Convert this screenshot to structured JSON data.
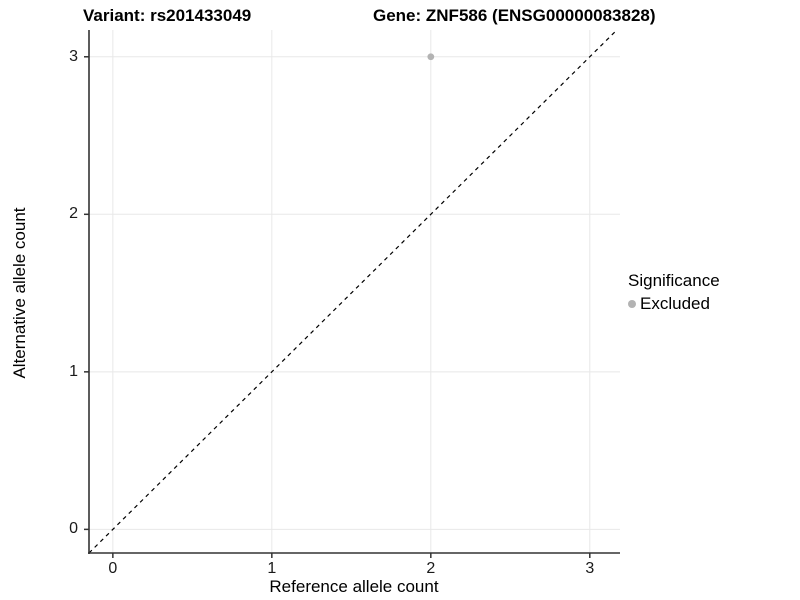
{
  "chart_data": {
    "type": "scatter",
    "title_left": "Variant: rs201433049",
    "title_right": "Gene: ZNF586 (ENSG00000083828)",
    "xlabel": "Reference allele count",
    "ylabel": "Alternative allele count",
    "xlim": [
      -0.15,
      3.19
    ],
    "ylim": [
      -0.15,
      3.17
    ],
    "xticks": [
      "0",
      "1",
      "2",
      "3"
    ],
    "yticks": [
      "0",
      "1",
      "2",
      "3"
    ],
    "xtick_values": [
      0,
      1,
      2,
      3
    ],
    "ytick_values": [
      0,
      1,
      2,
      3
    ],
    "grid": true,
    "reference_line": {
      "type": "identity y=x",
      "style": "dashed",
      "color": "#000000"
    },
    "series": [
      {
        "name": "Excluded",
        "color": "#b3b3b3",
        "points": [
          {
            "x": 2,
            "y": 3
          }
        ]
      }
    ],
    "legend": {
      "title": "Significance",
      "position": "right",
      "entries": [
        {
          "label": "Excluded",
          "color": "#b3b3b3"
        }
      ]
    },
    "colors": {
      "gridline": "#e8e8e8",
      "axis_line": "#333333",
      "tick_text": "#1a1a1a",
      "background": "#ffffff"
    }
  }
}
